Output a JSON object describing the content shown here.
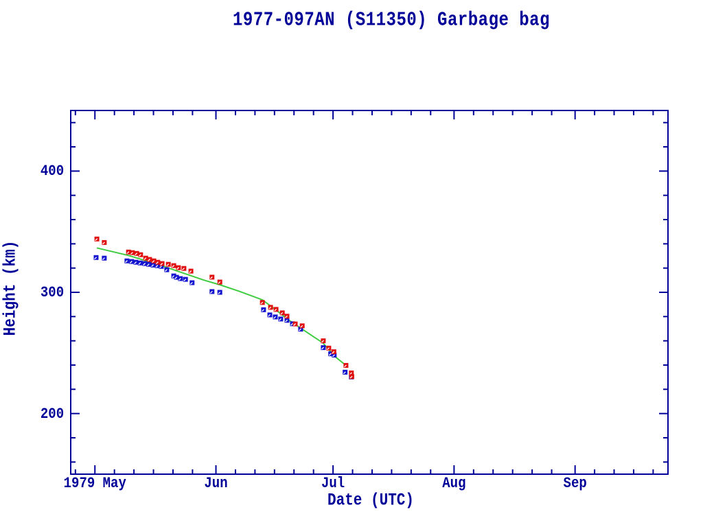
{
  "colors": {
    "background": "#ffffff",
    "axis": "#000099",
    "text": "#000099",
    "red_series": "#e01010",
    "blue_series": "#1515cf",
    "green_line": "#3fcc3f"
  },
  "chart_data": {
    "type": "scatter",
    "title": "1977-097AN (S11350) Garbage bag",
    "xlabel": "Date (UTC)",
    "ylabel": "Height (km)",
    "x_unit": "days since 1979-05-01",
    "x_range": [
      -6.2,
      146.8
    ],
    "y_range": [
      150,
      450
    ],
    "grid": false,
    "legend": "none",
    "x_major_ticks": [
      {
        "t": 0,
        "label": "1979 May"
      },
      {
        "t": 31,
        "label": "Jun"
      },
      {
        "t": 61,
        "label": "Jul"
      },
      {
        "t": 92,
        "label": "Aug"
      },
      {
        "t": 123,
        "label": "Sep"
      }
    ],
    "x_minor_ticks": [
      -5,
      5,
      10,
      15,
      20,
      25,
      36,
      41,
      46,
      51,
      56,
      66,
      71,
      76,
      81,
      86,
      97,
      102,
      107,
      112,
      117,
      128,
      133,
      138,
      143
    ],
    "y_major_ticks": [
      200,
      300,
      400
    ],
    "y_minor_ticks": [
      160,
      180,
      220,
      240,
      260,
      280,
      320,
      340,
      360,
      380,
      420,
      440
    ],
    "series": [
      {
        "name": "green-line",
        "type": "line",
        "color": "#3fcc3f",
        "points": [
          [
            0.5,
            336.6
          ],
          [
            8.6,
            330.4
          ],
          [
            16.1,
            323.1
          ],
          [
            23.2,
            315.2
          ],
          [
            27.9,
            310.1
          ],
          [
            32.0,
            306.2
          ],
          [
            37.2,
            300.6
          ],
          [
            42.9,
            293.8
          ],
          [
            46.4,
            285.4
          ],
          [
            49.5,
            277.5
          ],
          [
            53.1,
            269.6
          ],
          [
            58.4,
            258.3
          ],
          [
            61.5,
            247.0
          ],
          [
            64.3,
            239.7
          ]
        ]
      },
      {
        "name": "blue-points",
        "type": "scatter",
        "color": "#1515cf",
        "points": [
          [
            0.3,
            328.7
          ],
          [
            2.4,
            328.2
          ],
          [
            8.2,
            325.9
          ],
          [
            9.4,
            325.4
          ],
          [
            10.5,
            324.8
          ],
          [
            11.6,
            324.2
          ],
          [
            12.8,
            323.7
          ],
          [
            13.8,
            323.1
          ],
          [
            14.9,
            322.5
          ],
          [
            16.0,
            322.0
          ],
          [
            17.0,
            321.4
          ],
          [
            18.4,
            318.6
          ],
          [
            20.2,
            313.5
          ],
          [
            20.9,
            312.4
          ],
          [
            21.9,
            311.3
          ],
          [
            23.2,
            310.7
          ],
          [
            24.9,
            307.9
          ],
          [
            30.0,
            300.6
          ],
          [
            32.0,
            300.0
          ],
          [
            43.2,
            285.6
          ],
          [
            44.8,
            281.4
          ],
          [
            46.2,
            279.7
          ],
          [
            47.6,
            278.0
          ],
          [
            49.2,
            276.9
          ],
          [
            50.6,
            274.1
          ],
          [
            52.7,
            269.6
          ],
          [
            58.5,
            254.4
          ],
          [
            60.4,
            249.3
          ],
          [
            61.3,
            248.2
          ],
          [
            64.1,
            234.1
          ],
          [
            65.7,
            230.2
          ]
        ]
      },
      {
        "name": "red-points",
        "type": "scatter",
        "color": "#e01010",
        "points": [
          [
            0.5,
            344.0
          ],
          [
            2.4,
            341.1
          ],
          [
            8.6,
            333.2
          ],
          [
            9.6,
            332.7
          ],
          [
            10.7,
            332.1
          ],
          [
            11.7,
            331.0
          ],
          [
            13.0,
            328.2
          ],
          [
            14.0,
            327.1
          ],
          [
            15.1,
            325.9
          ],
          [
            16.1,
            324.8
          ],
          [
            17.2,
            323.7
          ],
          [
            18.8,
            323.1
          ],
          [
            20.2,
            322.0
          ],
          [
            21.4,
            320.3
          ],
          [
            22.8,
            319.7
          ],
          [
            24.6,
            317.5
          ],
          [
            30.0,
            312.5
          ],
          [
            32.0,
            308.5
          ],
          [
            42.9,
            291.6
          ],
          [
            45.0,
            287.6
          ],
          [
            46.4,
            285.9
          ],
          [
            48.0,
            283.1
          ],
          [
            49.2,
            280.3
          ],
          [
            51.3,
            273.9
          ],
          [
            53.1,
            272.4
          ],
          [
            58.5,
            260.0
          ],
          [
            59.9,
            254.0
          ],
          [
            61.2,
            251.0
          ],
          [
            64.3,
            239.7
          ],
          [
            65.7,
            233.5
          ],
          [
            65.8,
            230.5
          ]
        ]
      }
    ]
  }
}
